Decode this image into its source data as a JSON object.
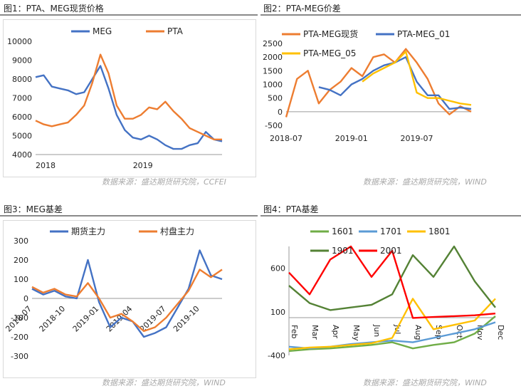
{
  "source_left": "数据来源：盛达期货研究院，CCFEI",
  "source_right": "数据来源：盛达期货研究院，WIND",
  "source_bottom_left": "数据来源：盛达期货研究院，WIND",
  "source_bottom_right": "数据来源：盛达期货研究院，WIND",
  "chart_data": [
    {
      "type": "line",
      "title": "图1：PTA、MEG现货价格",
      "legend_position": "top",
      "colors": {
        "MEG": "#4472C4",
        "PTA": "#ED7D31"
      },
      "ylim": [
        4000,
        10000
      ],
      "yticks": [
        4000,
        5000,
        6000,
        7000,
        8000,
        9000,
        10000
      ],
      "xticks": [
        "2018",
        "2019"
      ],
      "xlim": [
        "2018-01",
        "2019-12"
      ],
      "series": [
        {
          "name": "MEG",
          "x": [
            "2018-01",
            "2018-02",
            "2018-03",
            "2018-04",
            "2018-05",
            "2018-06",
            "2018-07",
            "2018-08",
            "2018-09",
            "2018-10",
            "2018-11",
            "2018-12",
            "2019-01",
            "2019-02",
            "2019-03",
            "2019-04",
            "2019-05",
            "2019-06",
            "2019-07",
            "2019-08",
            "2019-09",
            "2019-10",
            "2019-11",
            "2019-12"
          ],
          "values": [
            8100,
            8200,
            7600,
            7500,
            7400,
            7200,
            7300,
            8000,
            8700,
            7500,
            6100,
            5300,
            4900,
            4800,
            5000,
            4800,
            4500,
            4300,
            4300,
            4500,
            4600,
            5200,
            4800,
            4700
          ]
        },
        {
          "name": "PTA",
          "x": [
            "2018-01",
            "2018-02",
            "2018-03",
            "2018-04",
            "2018-05",
            "2018-06",
            "2018-07",
            "2018-08",
            "2018-09",
            "2018-10",
            "2018-11",
            "2018-12",
            "2019-01",
            "2019-02",
            "2019-03",
            "2019-04",
            "2019-05",
            "2019-06",
            "2019-07",
            "2019-08",
            "2019-09",
            "2019-10",
            "2019-11",
            "2019-12"
          ],
          "values": [
            5800,
            5600,
            5500,
            5600,
            5700,
            6100,
            6600,
            7800,
            9300,
            8300,
            6600,
            5900,
            5900,
            6100,
            6500,
            6400,
            6800,
            6300,
            5900,
            5400,
            5200,
            5000,
            4800,
            4800
          ]
        }
      ]
    },
    {
      "type": "line",
      "title": "图2：PTA-MEG价差",
      "legend_position": "top",
      "colors": {
        "PTA-MEG现货": "#ED7D31",
        "PTA-MEG_01": "#4472C4",
        "PTA-MEG_05": "#FFC000"
      },
      "ylim": [
        -500,
        2500
      ],
      "yticks": [
        -500,
        0,
        500,
        1000,
        1500,
        2000,
        2500
      ],
      "xticks": [
        "2018-07",
        "2019-01",
        "2019-07"
      ],
      "xlim": [
        "2018-07",
        "2019-12"
      ],
      "series": [
        {
          "name": "PTA-MEG现货",
          "x": [
            "2018-07",
            "2018-08",
            "2018-09",
            "2018-10",
            "2018-11",
            "2018-12",
            "2019-01",
            "2019-02",
            "2019-03",
            "2019-04",
            "2019-05",
            "2019-06",
            "2019-07",
            "2019-08",
            "2019-09",
            "2019-10",
            "2019-11",
            "2019-12"
          ],
          "values": [
            -200,
            1200,
            1500,
            300,
            800,
            1100,
            1600,
            1300,
            2000,
            2100,
            1800,
            2300,
            1800,
            1200,
            300,
            -100,
            200,
            0
          ]
        },
        {
          "name": "PTA-MEG_01",
          "x": [
            "2018-10",
            "2018-11",
            "2018-12",
            "2019-01",
            "2019-02",
            "2019-03",
            "2019-04",
            "2019-05",
            "2019-06",
            "2019-07",
            "2019-08",
            "2019-09",
            "2019-10",
            "2019-11",
            "2019-12"
          ],
          "values": [
            900,
            800,
            600,
            1000,
            1200,
            1500,
            1700,
            1800,
            2000,
            1100,
            600,
            600,
            100,
            150,
            100
          ]
        },
        {
          "name": "PTA-MEG_05",
          "x": [
            "2019-02",
            "2019-03",
            "2019-04",
            "2019-05",
            "2019-06",
            "2019-07",
            "2019-08",
            "2019-09",
            "2019-10",
            "2019-11",
            "2019-12"
          ],
          "values": [
            1100,
            1400,
            1600,
            1800,
            2200,
            700,
            500,
            500,
            400,
            300,
            250
          ]
        }
      ]
    },
    {
      "type": "line",
      "title": "图3：MEG基差",
      "legend_position": "top",
      "colors": {
        "期货主力": "#4472C4",
        "村盘主力": "#ED7D31"
      },
      "ylim": [
        -300,
        300
      ],
      "yticks": [
        -300,
        -200,
        -100,
        0,
        100,
        200,
        300
      ],
      "xticks": [
        "2018-07",
        "2018-10",
        "2019-01",
        "2019-04",
        "2019-07",
        "2019-10"
      ],
      "xlim": [
        "2018-07",
        "2019-12"
      ],
      "series": [
        {
          "name": "期货主力",
          "x": [
            "2018-07",
            "2018-08",
            "2018-09",
            "2018-10",
            "2018-11",
            "2018-12",
            "2019-01",
            "2019-02",
            "2019-03",
            "2019-04",
            "2019-05",
            "2019-06",
            "2019-07",
            "2019-08",
            "2019-09",
            "2019-10",
            "2019-11",
            "2019-12"
          ],
          "values": [
            50,
            20,
            40,
            10,
            0,
            200,
            -20,
            -150,
            -100,
            -120,
            -200,
            -180,
            -150,
            -50,
            50,
            250,
            120,
            100
          ]
        },
        {
          "name": "村盘主力",
          "x": [
            "2018-07",
            "2018-08",
            "2018-09",
            "2018-10",
            "2018-11",
            "2018-12",
            "2019-01",
            "2019-02",
            "2019-03",
            "2019-04",
            "2019-05",
            "2019-06",
            "2019-07",
            "2019-08",
            "2019-09",
            "2019-10",
            "2019-11",
            "2019-12"
          ],
          "values": [
            60,
            30,
            50,
            20,
            10,
            80,
            0,
            -100,
            -80,
            -120,
            -170,
            -150,
            -100,
            -30,
            40,
            150,
            110,
            150
          ]
        }
      ]
    },
    {
      "type": "line",
      "title": "图4：PTA基差",
      "legend_position": "top",
      "colors": {
        "1601": "#70AD47",
        "1701": "#5B9BD5",
        "1801": "#FFC000",
        "1901": "#548235",
        "2001": "#FF0000"
      },
      "ylim": [
        -400,
        850
      ],
      "yticks": [
        -400,
        100,
        600
      ],
      "xticks": [
        "Feb",
        "Mar",
        "Apr",
        "May",
        "Jun",
        "Jul",
        "Aug",
        "Sep",
        "Oct",
        "Nov",
        "Dec"
      ],
      "xlim": [
        "Feb",
        "Dec"
      ],
      "series": [
        {
          "name": "1601",
          "x": [
            "Feb",
            "Mar",
            "Apr",
            "May",
            "Jun",
            "Jul",
            "Aug",
            "Sep",
            "Oct",
            "Nov",
            "Dec"
          ],
          "values": [
            -350,
            -330,
            -320,
            -300,
            -280,
            -250,
            -320,
            -280,
            -250,
            -150,
            50
          ]
        },
        {
          "name": "1701",
          "x": [
            "Feb",
            "Mar",
            "Apr",
            "May",
            "Jun",
            "Jul",
            "Aug",
            "Sep",
            "Oct",
            "Nov",
            "Dec"
          ],
          "values": [
            -300,
            -320,
            -300,
            -270,
            -250,
            -230,
            -250,
            -200,
            -150,
            -100,
            -20
          ]
        },
        {
          "name": "1801",
          "x": [
            "Feb",
            "Mar",
            "Apr",
            "May",
            "Jun",
            "Jul",
            "Aug",
            "Sep",
            "Oct",
            "Nov",
            "Dec"
          ],
          "values": [
            -330,
            -310,
            -300,
            -280,
            -260,
            -200,
            250,
            -100,
            -50,
            0,
            250
          ]
        },
        {
          "name": "1901",
          "x": [
            "Feb",
            "Mar",
            "Apr",
            "May",
            "Jun",
            "Jul",
            "Aug",
            "Sep",
            "Oct",
            "Nov",
            "Dec"
          ],
          "values": [
            400,
            200,
            120,
            150,
            180,
            300,
            750,
            500,
            850,
            450,
            150
          ]
        },
        {
          "name": "2001",
          "x": [
            "Feb",
            "Mar",
            "Apr",
            "May",
            "Jun",
            "Jul",
            "Aug",
            "Sep",
            "Oct",
            "Nov",
            "Dec"
          ],
          "values": [
            550,
            300,
            700,
            850,
            500,
            800,
            30,
            40,
            50,
            60,
            80
          ]
        }
      ]
    }
  ]
}
